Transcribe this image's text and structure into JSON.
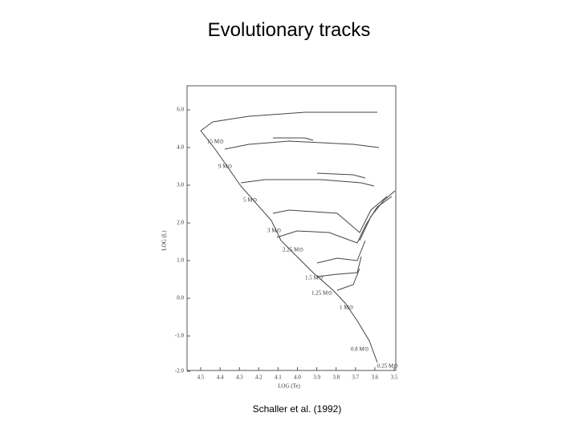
{
  "slide": {
    "title": "Evolutionary tracks",
    "caption": "Schaller et al. (1992)"
  },
  "figure": {
    "y_axis_label": "LOG (L)",
    "x_axis_label": "LOG (Te)",
    "yticks": [
      "6.0",
      "4.0",
      "3.0",
      "2.0",
      "1.0",
      "0.0",
      "-1.0",
      "-2.0"
    ],
    "xticks": [
      "4.5",
      "4.4",
      "4.3",
      "4.2",
      "4.1",
      "4.0",
      "3.9",
      "3.8",
      "3.7",
      "3.6",
      "3.5"
    ],
    "track_labels": [
      "15 M⊙",
      "9 M⊙",
      "5 M⊙",
      "3 M⊙",
      "2.25 M⊙",
      "1.5 M⊙",
      "1.25 M⊙",
      "1 M⊙",
      "0.8 M⊙",
      "0.25 M⊙"
    ]
  }
}
